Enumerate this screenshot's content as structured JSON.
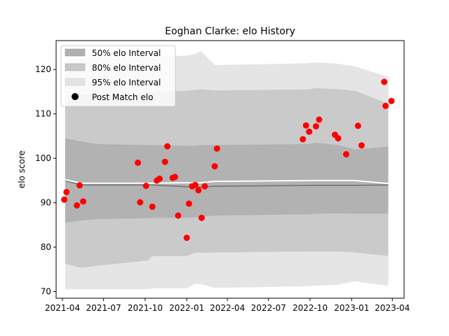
{
  "chart_data": {
    "type": "scatter",
    "title": "Eoghan Clarke: elo History",
    "ylabel": "elo score",
    "xlabel": "",
    "xlim": [
      "2021-03-18",
      "2023-04-27"
    ],
    "ylim": [
      68.5,
      126.5
    ],
    "x_ticks": [
      "2021-04",
      "2021-07",
      "2021-10",
      "2022-01",
      "2022-04",
      "2022-07",
      "2022-10",
      "2023-01",
      "2023-04"
    ],
    "y_ticks": [
      70,
      80,
      90,
      100,
      110,
      120
    ],
    "grid": false,
    "legend": {
      "placement": "upper-left",
      "entries": [
        "50% elo Interval",
        "80% elo Interval",
        "95% elo Interval",
        "Post Match elo"
      ]
    },
    "colors": {
      "band50": "#b0b0b0",
      "band80": "#c8c8c8",
      "band95": "#e4e4e4",
      "mean_line": "#707070",
      "median_line": "#ffffff",
      "points": "#ff0000"
    },
    "bands": [
      {
        "name": "95% elo Interval",
        "x": [
          "2021-04-07",
          "2021-05-12",
          "2021-06-15",
          "2021-10-07",
          "2021-10-17",
          "2022-01-01",
          "2022-01-20",
          "2022-02-01",
          "2022-03-04",
          "2022-09-25",
          "2022-10-14",
          "2022-12-01",
          "2023-01-08",
          "2023-03-23"
        ],
        "upper": [
          122.0,
          122.5,
          122.8,
          122.8,
          123.0,
          123.1,
          123.5,
          124.2,
          121.0,
          121.4,
          121.6,
          121.3,
          120.7,
          118.3
        ],
        "lower": [
          70.5,
          70.5,
          70.5,
          70.5,
          70.7,
          70.7,
          71.7,
          71.7,
          70.8,
          71.2,
          71.3,
          71.5,
          72.3,
          71.3
        ]
      },
      {
        "name": "80% elo Interval",
        "x": [
          "2021-04-07",
          "2021-05-12",
          "2021-06-15",
          "2021-10-07",
          "2021-10-17",
          "2022-01-01",
          "2022-01-20",
          "2022-02-01",
          "2022-03-04",
          "2022-09-25",
          "2022-10-14",
          "2022-12-01",
          "2023-01-08",
          "2023-03-23"
        ],
        "upper": [
          112.5,
          114.2,
          114.5,
          114.8,
          115.0,
          115.2,
          115.4,
          115.5,
          115.3,
          115.5,
          115.8,
          115.6,
          115.2,
          112.3
        ],
        "lower": [
          76.3,
          75.3,
          75.8,
          77.0,
          78.0,
          78.0,
          78.7,
          78.7,
          78.8,
          79.0,
          79.0,
          79.0,
          78.8,
          78.0
        ]
      },
      {
        "name": "50% elo Interval",
        "x": [
          "2021-04-07",
          "2021-05-12",
          "2021-06-15",
          "2021-10-07",
          "2021-10-17",
          "2022-01-01",
          "2022-01-20",
          "2022-02-01",
          "2022-03-04",
          "2022-09-25",
          "2022-10-14",
          "2022-12-01",
          "2023-01-08",
          "2023-03-23"
        ],
        "upper": [
          104.5,
          103.8,
          103.2,
          103.0,
          103.0,
          102.8,
          102.8,
          103.0,
          103.0,
          103.2,
          103.5,
          103.0,
          102.0,
          102.6
        ],
        "lower": [
          85.5,
          86.0,
          86.3,
          86.5,
          86.6,
          86.6,
          86.7,
          86.8,
          87.1,
          87.4,
          87.5,
          87.6,
          87.5,
          87.5
        ]
      }
    ],
    "mean_line": {
      "x": [
        "2021-04-07",
        "2021-05-12",
        "2021-06-15",
        "2021-10-17",
        "2022-01-01",
        "2022-02-01",
        "2022-03-04",
        "2022-10-14",
        "2023-01-08",
        "2023-03-23"
      ],
      "y": [
        95.0,
        94.0,
        94.0,
        94.0,
        93.6,
        93.5,
        93.7,
        93.9,
        93.9,
        94.0
      ]
    },
    "median_line": {
      "x": [
        "2021-04-07",
        "2021-05-12",
        "2021-06-15",
        "2021-10-17",
        "2022-01-01",
        "2022-02-01",
        "2022-03-04",
        "2022-10-14",
        "2023-01-08",
        "2023-03-23"
      ],
      "y": [
        95.2,
        94.4,
        94.4,
        94.4,
        94.5,
        94.5,
        94.8,
        95.0,
        95.0,
        94.3
      ]
    },
    "series": [
      {
        "name": "Post Match elo",
        "x": [
          "2021-04-05",
          "2021-04-10",
          "2021-05-03",
          "2021-05-09",
          "2021-05-17",
          "2021-09-15",
          "2021-09-20",
          "2021-10-03",
          "2021-10-17",
          "2021-10-27",
          "2021-11-02",
          "2021-11-14",
          "2021-11-19",
          "2021-12-01",
          "2021-12-06",
          "2021-12-13",
          "2022-01-01",
          "2022-01-06",
          "2022-01-13",
          "2022-01-20",
          "2022-01-27",
          "2022-02-03",
          "2022-02-10",
          "2022-03-04",
          "2022-03-09",
          "2022-09-15",
          "2022-09-22",
          "2022-09-29",
          "2022-10-14",
          "2022-10-21",
          "2022-11-25",
          "2022-12-02",
          "2022-12-20",
          "2023-01-15",
          "2023-01-23",
          "2023-03-14",
          "2023-03-17",
          "2023-03-30"
        ],
        "y": [
          90.7,
          92.4,
          89.4,
          93.9,
          90.3,
          99.0,
          90.1,
          93.8,
          89.1,
          95.0,
          95.4,
          99.2,
          102.7,
          95.6,
          95.8,
          87.1,
          82.1,
          89.8,
          93.7,
          94.0,
          92.8,
          86.6,
          93.7,
          98.2,
          102.2,
          104.3,
          107.4,
          106.0,
          107.2,
          108.7,
          105.3,
          104.5,
          100.9,
          107.3,
          102.9,
          117.2,
          111.8,
          112.9
        ]
      }
    ]
  }
}
